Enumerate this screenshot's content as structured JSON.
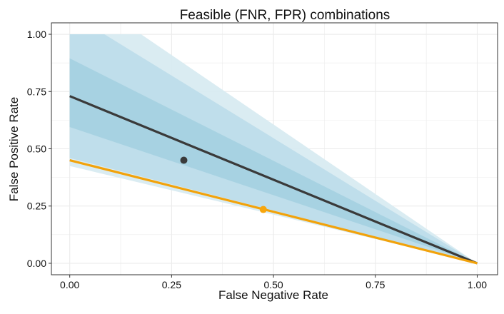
{
  "chart_data": {
    "type": "line",
    "title": "Feasible (FNR, FPR) combinations",
    "xlabel": "False Negative Rate",
    "ylabel": "False Positive Rate",
    "xlim": [
      -0.045,
      1.05
    ],
    "ylim": [
      -0.05,
      1.05
    ],
    "x_ticks": [
      0,
      0.25,
      0.5,
      0.75,
      1
    ],
    "x_tick_labels": [
      "0.00",
      "0.25",
      "0.50",
      "0.75",
      "1.00"
    ],
    "y_ticks": [
      0,
      0.25,
      0.5,
      0.75,
      1
    ],
    "y_tick_labels": [
      "0.00",
      "0.25",
      "0.50",
      "0.75",
      "1.00"
    ],
    "minor_gridlines": [
      0.125,
      0.375,
      0.625,
      0.875
    ],
    "grid": true,
    "legend": "none",
    "colors": {
      "band_outer": "#d7eaf1",
      "band_mid": "#bddcea",
      "band_inner": "#a5d0e1",
      "line_dark": "#3a3a3a",
      "line_orange": "#f2a20a",
      "point_dark": "#3a3a3a",
      "point_orange": "#f7a60d",
      "panel_border": "#333333",
      "grid": "#ebebeb"
    },
    "bands": [
      {
        "name": "outer-band",
        "polygon": [
          [
            0,
            1
          ],
          [
            0.175,
            1
          ],
          [
            1,
            0
          ],
          [
            0,
            0.425
          ]
        ]
      },
      {
        "name": "middle-band",
        "polygon": [
          [
            0,
            1
          ],
          [
            0.085,
            1
          ],
          [
            1,
            0
          ],
          [
            0,
            0.46
          ]
        ]
      },
      {
        "name": "inner-band",
        "polygon": [
          [
            0,
            0.895
          ],
          [
            1,
            0
          ],
          [
            0,
            0.595
          ]
        ]
      }
    ],
    "series": [
      {
        "name": "dark-line",
        "x": [
          0,
          1
        ],
        "y": [
          0.73,
          0
        ]
      },
      {
        "name": "orange-line",
        "x": [
          0,
          1
        ],
        "y": [
          0.45,
          0
        ]
      }
    ],
    "points": [
      {
        "name": "dark-point",
        "x": 0.28,
        "y": 0.45
      },
      {
        "name": "orange-point",
        "x": 0.475,
        "y": 0.235
      }
    ]
  }
}
